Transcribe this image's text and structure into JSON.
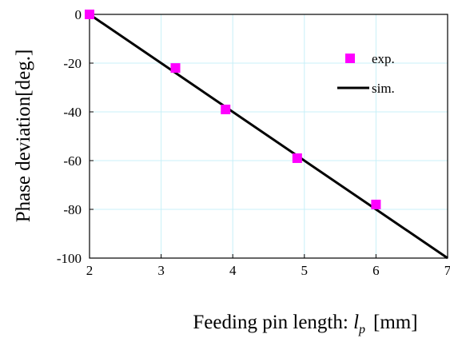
{
  "chart_data": {
    "type": "scatter",
    "xlabel": "Feeding pin length: ",
    "xlabel_var": "l",
    "xlabel_sub": "p",
    "xlabel_unit": "[mm]",
    "ylabel": "Phase deviation[deg.]",
    "xlim": [
      2,
      7
    ],
    "ylim": [
      -100,
      0
    ],
    "x_ticks": [
      2,
      3,
      4,
      5,
      6,
      7
    ],
    "y_ticks": [
      0,
      -20,
      -40,
      -60,
      -80,
      -100
    ],
    "grid": true,
    "legend_position": "top-right",
    "series": [
      {
        "name": "exp.",
        "kind": "markers",
        "marker": "square",
        "color": "#ff00ff",
        "x": [
          2.0,
          3.2,
          3.9,
          4.9,
          6.0
        ],
        "y": [
          0,
          -22,
          -39,
          -59,
          -78
        ]
      },
      {
        "name": "sim.",
        "kind": "line",
        "color": "#000000",
        "x": [
          2.0,
          7.0
        ],
        "y": [
          0,
          -100
        ]
      }
    ]
  }
}
